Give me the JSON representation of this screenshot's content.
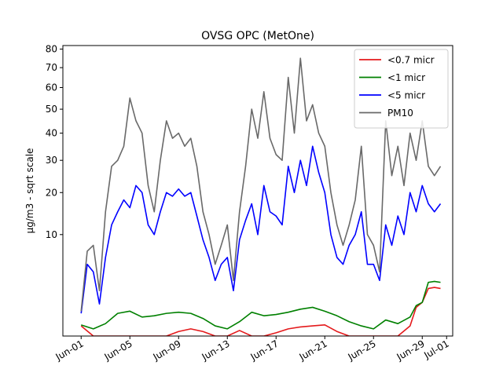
{
  "chart_data": {
    "type": "line",
    "title": "OVSG OPC (MetOne)",
    "xlabel": "",
    "ylabel": "µg/m3 - sqrt scale",
    "y_scale": "sqrt",
    "xlim": [
      "2023-05-30T12:00",
      "2023-07-01T12:00"
    ],
    "ylim": [
      0,
      82
    ],
    "x_ticks": [
      {
        "date": "2023-06-01",
        "label": "Jun-01"
      },
      {
        "date": "2023-06-05",
        "label": "Jun-05"
      },
      {
        "date": "2023-06-09",
        "label": "Jun-09"
      },
      {
        "date": "2023-06-13",
        "label": "Jun-13"
      },
      {
        "date": "2023-06-17",
        "label": "Jun-17"
      },
      {
        "date": "2023-06-21",
        "label": "Jun-21"
      },
      {
        "date": "2023-06-25",
        "label": "Jun-25"
      },
      {
        "date": "2023-06-29",
        "label": "Jun-29"
      },
      {
        "date": "2023-07-01",
        "label": "Jul-01"
      }
    ],
    "y_ticks": [
      {
        "value": 10,
        "label": "10"
      },
      {
        "value": 20,
        "label": "20"
      },
      {
        "value": 30,
        "label": "30"
      },
      {
        "value": 40,
        "label": "40"
      },
      {
        "value": 50,
        "label": "50"
      },
      {
        "value": 60,
        "label": "60"
      },
      {
        "value": 70,
        "label": "70"
      },
      {
        "value": 80,
        "label": "80"
      }
    ],
    "legend_position": "top-right",
    "series": [
      {
        "name": "<0.7 micr",
        "color": "#e41a1c",
        "x": [
          "2023-06-01",
          "2023-06-02",
          "2023-06-03",
          "2023-06-04",
          "2023-06-05",
          "2023-06-06",
          "2023-06-07",
          "2023-06-08",
          "2023-06-09",
          "2023-06-10",
          "2023-06-11",
          "2023-06-12",
          "2023-06-13",
          "2023-06-14",
          "2023-06-15",
          "2023-06-16",
          "2023-06-17",
          "2023-06-18",
          "2023-06-19",
          "2023-06-20",
          "2023-06-21",
          "2023-06-22",
          "2023-06-23",
          "2023-06-24",
          "2023-06-25",
          "2023-06-26",
          "2023-06-27",
          "2023-06-28",
          "2023-06-28T12:00",
          "2023-06-29",
          "2023-06-29T12:00",
          "2023-06-30",
          "2023-06-30T12:00"
        ],
        "values": [
          0.1,
          0,
          0,
          0,
          0,
          0,
          0,
          0,
          0.02,
          0.05,
          0.02,
          0,
          0,
          0.03,
          0,
          0,
          0.01,
          0.05,
          0.08,
          0.1,
          0.12,
          0.02,
          0,
          0,
          0,
          0,
          0,
          0.1,
          0.8,
          1.1,
          2.2,
          2.3,
          2.2
        ]
      },
      {
        "name": "<1 micr",
        "color": "#008000",
        "x": [
          "2023-06-01",
          "2023-06-02",
          "2023-06-03",
          "2023-06-04",
          "2023-06-05",
          "2023-06-06",
          "2023-06-07",
          "2023-06-08",
          "2023-06-09",
          "2023-06-10",
          "2023-06-11",
          "2023-06-12",
          "2023-06-13",
          "2023-06-14",
          "2023-06-15",
          "2023-06-16",
          "2023-06-17",
          "2023-06-18",
          "2023-06-19",
          "2023-06-20",
          "2023-06-21",
          "2023-06-22",
          "2023-06-23",
          "2023-06-24",
          "2023-06-25",
          "2023-06-26",
          "2023-06-27",
          "2023-06-28",
          "2023-06-28T12:00",
          "2023-06-29",
          "2023-06-29T12:00",
          "2023-06-30",
          "2023-06-30T12:00"
        ],
        "values": [
          0.12,
          0.05,
          0.15,
          0.5,
          0.6,
          0.35,
          0.4,
          0.5,
          0.55,
          0.5,
          0.3,
          0.1,
          0.05,
          0.2,
          0.55,
          0.4,
          0.45,
          0.55,
          0.7,
          0.8,
          0.6,
          0.4,
          0.2,
          0.1,
          0.05,
          0.25,
          0.15,
          0.35,
          0.9,
          1.1,
          2.8,
          2.9,
          2.8
        ]
      },
      {
        "name": "<5 micr",
        "color": "#0000ff",
        "x": [
          "2023-06-01",
          "2023-06-01T12:00",
          "2023-06-02",
          "2023-06-02T12:00",
          "2023-06-03",
          "2023-06-03T12:00",
          "2023-06-04",
          "2023-06-04T12:00",
          "2023-06-05",
          "2023-06-05T12:00",
          "2023-06-06",
          "2023-06-06T12:00",
          "2023-06-07",
          "2023-06-07T12:00",
          "2023-06-08",
          "2023-06-08T12:00",
          "2023-06-09",
          "2023-06-09T12:00",
          "2023-06-10",
          "2023-06-10T12:00",
          "2023-06-11",
          "2023-06-11T12:00",
          "2023-06-12",
          "2023-06-12T12:00",
          "2023-06-13",
          "2023-06-13T12:00",
          "2023-06-14",
          "2023-06-14T12:00",
          "2023-06-15",
          "2023-06-15T12:00",
          "2023-06-16",
          "2023-06-16T12:00",
          "2023-06-17",
          "2023-06-17T12:00",
          "2023-06-18",
          "2023-06-18T12:00",
          "2023-06-19",
          "2023-06-19T12:00",
          "2023-06-20",
          "2023-06-20T12:00",
          "2023-06-21",
          "2023-06-21T12:00",
          "2023-06-22",
          "2023-06-22T12:00",
          "2023-06-23",
          "2023-06-23T12:00",
          "2023-06-24",
          "2023-06-24T12:00",
          "2023-06-25",
          "2023-06-25T12:00",
          "2023-06-26",
          "2023-06-26T12:00",
          "2023-06-27",
          "2023-06-27T12:00",
          "2023-06-28",
          "2023-06-28T12:00",
          "2023-06-29",
          "2023-06-29T12:00",
          "2023-06-30",
          "2023-06-30T12:00"
        ],
        "values": [
          0.5,
          5,
          4,
          1,
          6,
          12,
          15,
          18,
          16,
          22,
          20,
          12,
          10,
          15,
          20,
          19,
          21,
          19,
          20,
          14,
          9,
          6,
          3,
          5,
          6,
          2,
          9,
          13,
          17,
          10,
          22,
          15,
          14,
          12,
          28,
          20,
          30,
          22,
          35,
          26,
          20,
          10,
          6,
          5,
          8,
          10,
          15,
          5,
          5,
          3,
          12,
          8,
          14,
          10,
          20,
          15,
          22,
          17,
          15,
          17
        ]
      },
      {
        "name": "PM10",
        "color": "#696969",
        "x": [
          "2023-06-01",
          "2023-06-01T12:00",
          "2023-06-02",
          "2023-06-02T12:00",
          "2023-06-03",
          "2023-06-03T12:00",
          "2023-06-04",
          "2023-06-04T12:00",
          "2023-06-05",
          "2023-06-05T12:00",
          "2023-06-06",
          "2023-06-06T12:00",
          "2023-06-07",
          "2023-06-07T12:00",
          "2023-06-08",
          "2023-06-08T12:00",
          "2023-06-09",
          "2023-06-09T12:00",
          "2023-06-10",
          "2023-06-10T12:00",
          "2023-06-11",
          "2023-06-11T12:00",
          "2023-06-12",
          "2023-06-12T12:00",
          "2023-06-13",
          "2023-06-13T12:00",
          "2023-06-14",
          "2023-06-14T12:00",
          "2023-06-15",
          "2023-06-15T12:00",
          "2023-06-16",
          "2023-06-16T12:00",
          "2023-06-17",
          "2023-06-17T12:00",
          "2023-06-18",
          "2023-06-18T12:00",
          "2023-06-19",
          "2023-06-19T12:00",
          "2023-06-20",
          "2023-06-20T12:00",
          "2023-06-21",
          "2023-06-21T12:00",
          "2023-06-22",
          "2023-06-22T12:00",
          "2023-06-23",
          "2023-06-23T12:00",
          "2023-06-24",
          "2023-06-24T12:00",
          "2023-06-25",
          "2023-06-25T12:00",
          "2023-06-26",
          "2023-06-26T12:00",
          "2023-06-27",
          "2023-06-27T12:00",
          "2023-06-28",
          "2023-06-28T12:00",
          "2023-06-29",
          "2023-06-29T12:00",
          "2023-06-30",
          "2023-06-30T12:00"
        ],
        "values": [
          0.6,
          7,
          8,
          2,
          15,
          28,
          30,
          35,
          55,
          45,
          40,
          22,
          15,
          30,
          45,
          38,
          40,
          35,
          38,
          28,
          15,
          10,
          5,
          8,
          12,
          3,
          15,
          28,
          50,
          38,
          58,
          38,
          32,
          30,
          65,
          40,
          75,
          45,
          52,
          40,
          35,
          20,
          12,
          8,
          12,
          18,
          35,
          10,
          8,
          4,
          45,
          25,
          35,
          22,
          40,
          30,
          45,
          28,
          25,
          28
        ]
      }
    ]
  }
}
